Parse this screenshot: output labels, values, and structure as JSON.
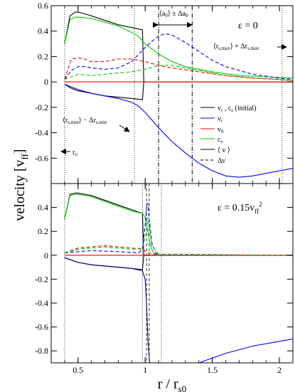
{
  "chart_data": [
    {
      "type": "line",
      "panel": "top",
      "annotation": "ε = 0",
      "xlim": [
        0.3,
        2.1
      ],
      "ylim": [
        -0.8,
        0.6
      ],
      "xticks": [
        0.5,
        1,
        1.5,
        2
      ],
      "xtick_labels": [
        "0.5",
        "1",
        "1.5",
        "2"
      ],
      "yticks": [
        0.6,
        0.4,
        0.2,
        0,
        -0.2,
        -0.4,
        -0.6
      ],
      "ytick_labels": [
        "0.6",
        "0.4",
        "0.2",
        "0",
        "-0.2",
        "-0.4",
        "-0.6"
      ],
      "vlines_dotted": [
        0.4,
        0.92,
        2.02
      ],
      "vlines_dashdot": [
        1.1,
        1.35
      ],
      "annotations": {
        "a0": "⟨a₀⟩ ± Δa₀",
        "rsmax": "⟨r_s,max⟩ + Δr_s,max",
        "rsmin": "⟨r_s,min⟩ − Δr_s,min",
        "r0": "r₀"
      },
      "legend": {
        "position": "right-middle",
        "entries": [
          {
            "label": "v_r , c_s (initial)",
            "color": "#000000",
            "style": "solid"
          },
          {
            "label": "v_r",
            "color": "#0000ff",
            "style": "solid"
          },
          {
            "label": "v_θ",
            "color": "#ff0000",
            "style": "solid"
          },
          {
            "label": "c_s",
            "color": "#00cc00",
            "style": "solid"
          },
          {
            "label": "⟨ v ⟩",
            "color": "#000000",
            "style": "solid"
          },
          {
            "label": "Δv",
            "color": "#000000",
            "style": "dashed"
          }
        ]
      },
      "series": [
        {
          "name": "c_s (initial)",
          "color": "#000000",
          "style": "solid",
          "x": [
            0.4,
            0.44,
            0.48,
            0.5,
            0.6,
            0.8,
            0.98,
            0.99,
            2.1
          ],
          "y": [
            0.3,
            0.52,
            0.55,
            0.55,
            0.52,
            0.45,
            0.41,
            0.0,
            0.0
          ]
        },
        {
          "name": "v_r (initial)",
          "color": "#000000",
          "style": "solid",
          "x": [
            0.4,
            0.45,
            0.5,
            0.6,
            0.7,
            0.8,
            0.9,
            0.98,
            0.99,
            2.1
          ],
          "y": [
            -0.02,
            -0.05,
            -0.07,
            -0.09,
            -0.11,
            -0.12,
            -0.13,
            -0.14,
            0.0,
            0.0
          ]
        },
        {
          "name": "c_s",
          "color": "#00cc00",
          "style": "solid",
          "x": [
            0.4,
            0.44,
            0.48,
            0.5,
            0.6,
            0.7,
            0.8,
            0.9,
            0.95,
            1.0,
            1.1,
            1.2,
            1.3,
            1.5,
            1.7,
            2.1
          ],
          "y": [
            0.3,
            0.49,
            0.51,
            0.51,
            0.5,
            0.47,
            0.44,
            0.39,
            0.36,
            0.3,
            0.22,
            0.16,
            0.12,
            0.08,
            0.05,
            0.03
          ]
        },
        {
          "name": "v_r",
          "color": "#0000ff",
          "style": "solid",
          "x": [
            0.4,
            0.5,
            0.6,
            0.7,
            0.8,
            0.9,
            0.95,
            1.0,
            1.05,
            1.1,
            1.2,
            1.3,
            1.4,
            1.5,
            1.6,
            1.7,
            1.8,
            1.9,
            2.0,
            2.1
          ],
          "y": [
            -0.02,
            -0.06,
            -0.09,
            -0.11,
            -0.13,
            -0.16,
            -0.19,
            -0.24,
            -0.3,
            -0.36,
            -0.47,
            -0.56,
            -0.64,
            -0.7,
            -0.74,
            -0.75,
            -0.74,
            -0.72,
            -0.7,
            -0.68
          ]
        },
        {
          "name": "v_θ",
          "color": "#ff0000",
          "style": "solid",
          "x": [
            0.4,
            2.1
          ],
          "y": [
            0.0,
            0.0
          ]
        },
        {
          "name": "Δ c_s",
          "color": "#00cc00",
          "style": "dashed",
          "x": [
            0.4,
            0.5,
            0.6,
            0.7,
            0.8,
            0.9,
            1.0,
            1.1,
            1.2,
            1.3,
            1.4,
            1.5,
            1.6,
            1.8,
            2.0,
            2.1
          ],
          "y": [
            0.02,
            0.06,
            0.05,
            0.06,
            0.07,
            0.08,
            0.1,
            0.13,
            0.13,
            0.11,
            0.09,
            0.07,
            0.05,
            0.03,
            0.02,
            0.01
          ]
        },
        {
          "name": "Δ v_r",
          "color": "#0000ff",
          "style": "dashed",
          "x": [
            0.4,
            0.45,
            0.5,
            0.55,
            0.6,
            0.7,
            0.8,
            0.9,
            1.0,
            1.05,
            1.1,
            1.15,
            1.2,
            1.3,
            1.4,
            1.5,
            1.6,
            1.8,
            2.0,
            2.1
          ],
          "y": [
            0.02,
            0.09,
            0.12,
            0.12,
            0.11,
            0.1,
            0.11,
            0.16,
            0.27,
            0.32,
            0.36,
            0.38,
            0.37,
            0.31,
            0.24,
            0.17,
            0.12,
            0.06,
            0.03,
            0.02
          ]
        },
        {
          "name": "Δ v_θ",
          "color": "#ff0000",
          "style": "dashed",
          "x": [
            0.4,
            0.45,
            0.5,
            0.55,
            0.6,
            0.7,
            0.8,
            0.9,
            1.0,
            1.1,
            1.2,
            1.4,
            1.6,
            1.8,
            2.0,
            2.1
          ],
          "y": [
            0.02,
            0.18,
            0.19,
            0.18,
            0.16,
            0.16,
            0.18,
            0.18,
            0.16,
            0.13,
            0.11,
            0.08,
            0.05,
            0.03,
            0.02,
            0.01
          ]
        }
      ]
    },
    {
      "type": "line",
      "panel": "bottom",
      "annotation": "ε = 0.15v_ff²",
      "xlabel": "r / r_s0",
      "xlim": [
        0.3,
        2.1
      ],
      "ylim": [
        -0.9,
        0.6
      ],
      "xticks": [
        0.5,
        1,
        1.5,
        2
      ],
      "xtick_labels": [
        "0.5",
        "1",
        "1.5",
        "2"
      ],
      "yticks": [
        0.4,
        0.2,
        0,
        -0.2,
        -0.4,
        -0.6,
        -0.8
      ],
      "ytick_labels": [
        "0.4",
        "0.2",
        "0",
        "-0.2",
        "-0.4",
        "-0.6",
        "-0.8"
      ],
      "vlines_dotted": [
        0.4,
        0.98,
        1.12
      ],
      "vlines_dashed": [
        1.01,
        1.03
      ],
      "series": [
        {
          "name": "c_s (initial)",
          "color": "#000000",
          "style": "solid",
          "x": [
            0.4,
            0.44,
            0.48,
            0.5,
            0.6,
            0.8,
            0.98,
            0.99,
            2.1
          ],
          "y": [
            0.3,
            0.51,
            0.52,
            0.52,
            0.5,
            0.42,
            0.35,
            0.0,
            0.0
          ]
        },
        {
          "name": "v_r (initial)",
          "color": "#000000",
          "style": "solid",
          "x": [
            0.4,
            0.5,
            0.6,
            0.7,
            0.8,
            0.9,
            0.98,
            0.99,
            2.1
          ],
          "y": [
            -0.02,
            -0.06,
            -0.08,
            -0.09,
            -0.1,
            -0.11,
            -0.12,
            0.0,
            0.0
          ]
        },
        {
          "name": "c_s",
          "color": "#00cc00",
          "style": "solid",
          "x": [
            0.4,
            0.44,
            0.48,
            0.5,
            0.6,
            0.7,
            0.8,
            0.9,
            0.98,
            1.0,
            1.02,
            1.04,
            1.06,
            1.1,
            2.1
          ],
          "y": [
            0.3,
            0.5,
            0.51,
            0.51,
            0.49,
            0.45,
            0.41,
            0.37,
            0.35,
            0.32,
            0.2,
            0.08,
            0.02,
            0.0,
            0.0
          ]
        },
        {
          "name": "v_r",
          "color": "#000080",
          "style": "solid",
          "x": [
            0.4,
            0.5,
            0.6,
            0.7,
            0.8,
            0.9,
            0.98,
            1.0,
            1.01,
            1.02,
            1.04
          ],
          "y": [
            -0.02,
            -0.06,
            -0.08,
            -0.09,
            -0.1,
            -0.11,
            -0.13,
            -0.2,
            -0.4,
            -0.7,
            -1.0
          ]
        },
        {
          "name": "v_r outer",
          "color": "#0000ff",
          "style": "solid",
          "x": [
            1.4,
            1.6,
            1.8,
            2.0,
            2.1
          ],
          "y": [
            -0.9,
            -0.82,
            -0.76,
            -0.72,
            -0.7
          ]
        },
        {
          "name": "v_θ",
          "color": "#ff0000",
          "style": "solid",
          "x": [
            0.4,
            2.1
          ],
          "y": [
            0.0,
            0.0
          ]
        },
        {
          "name": "Δ v_r",
          "color": "#0000ff",
          "style": "dashed",
          "x": [
            0.4,
            0.5,
            0.6,
            0.8,
            0.95,
            0.98,
            1.0,
            1.01,
            1.02,
            1.03,
            1.05,
            1.08,
            1.12,
            2.1
          ],
          "y": [
            0.02,
            0.03,
            0.04,
            0.03,
            0.02,
            0.05,
            0.25,
            0.4,
            0.44,
            0.3,
            0.1,
            0.02,
            0.0,
            0.0
          ]
        },
        {
          "name": "Δ v_θ",
          "color": "#ff0000",
          "style": "dashed",
          "x": [
            0.4,
            0.5,
            0.6,
            0.7,
            0.8,
            0.9,
            0.98,
            1.02,
            1.06,
            1.12,
            2.1
          ],
          "y": [
            0.02,
            0.06,
            0.07,
            0.08,
            0.07,
            0.06,
            0.05,
            0.02,
            0.01,
            0.0,
            0.0
          ]
        },
        {
          "name": "Δ c_s",
          "color": "#00cc00",
          "style": "dashed",
          "x": [
            0.4,
            0.5,
            0.6,
            0.7,
            0.8,
            0.9,
            0.98,
            1.01,
            1.02,
            1.03,
            1.05,
            1.1,
            2.1
          ],
          "y": [
            0.02,
            0.05,
            0.06,
            0.07,
            0.06,
            0.05,
            0.06,
            0.2,
            0.32,
            0.25,
            0.08,
            0.01,
            0.0
          ]
        }
      ]
    }
  ],
  "ylabel": "velocity [v_ff]",
  "xlabel": "r / r_s0"
}
